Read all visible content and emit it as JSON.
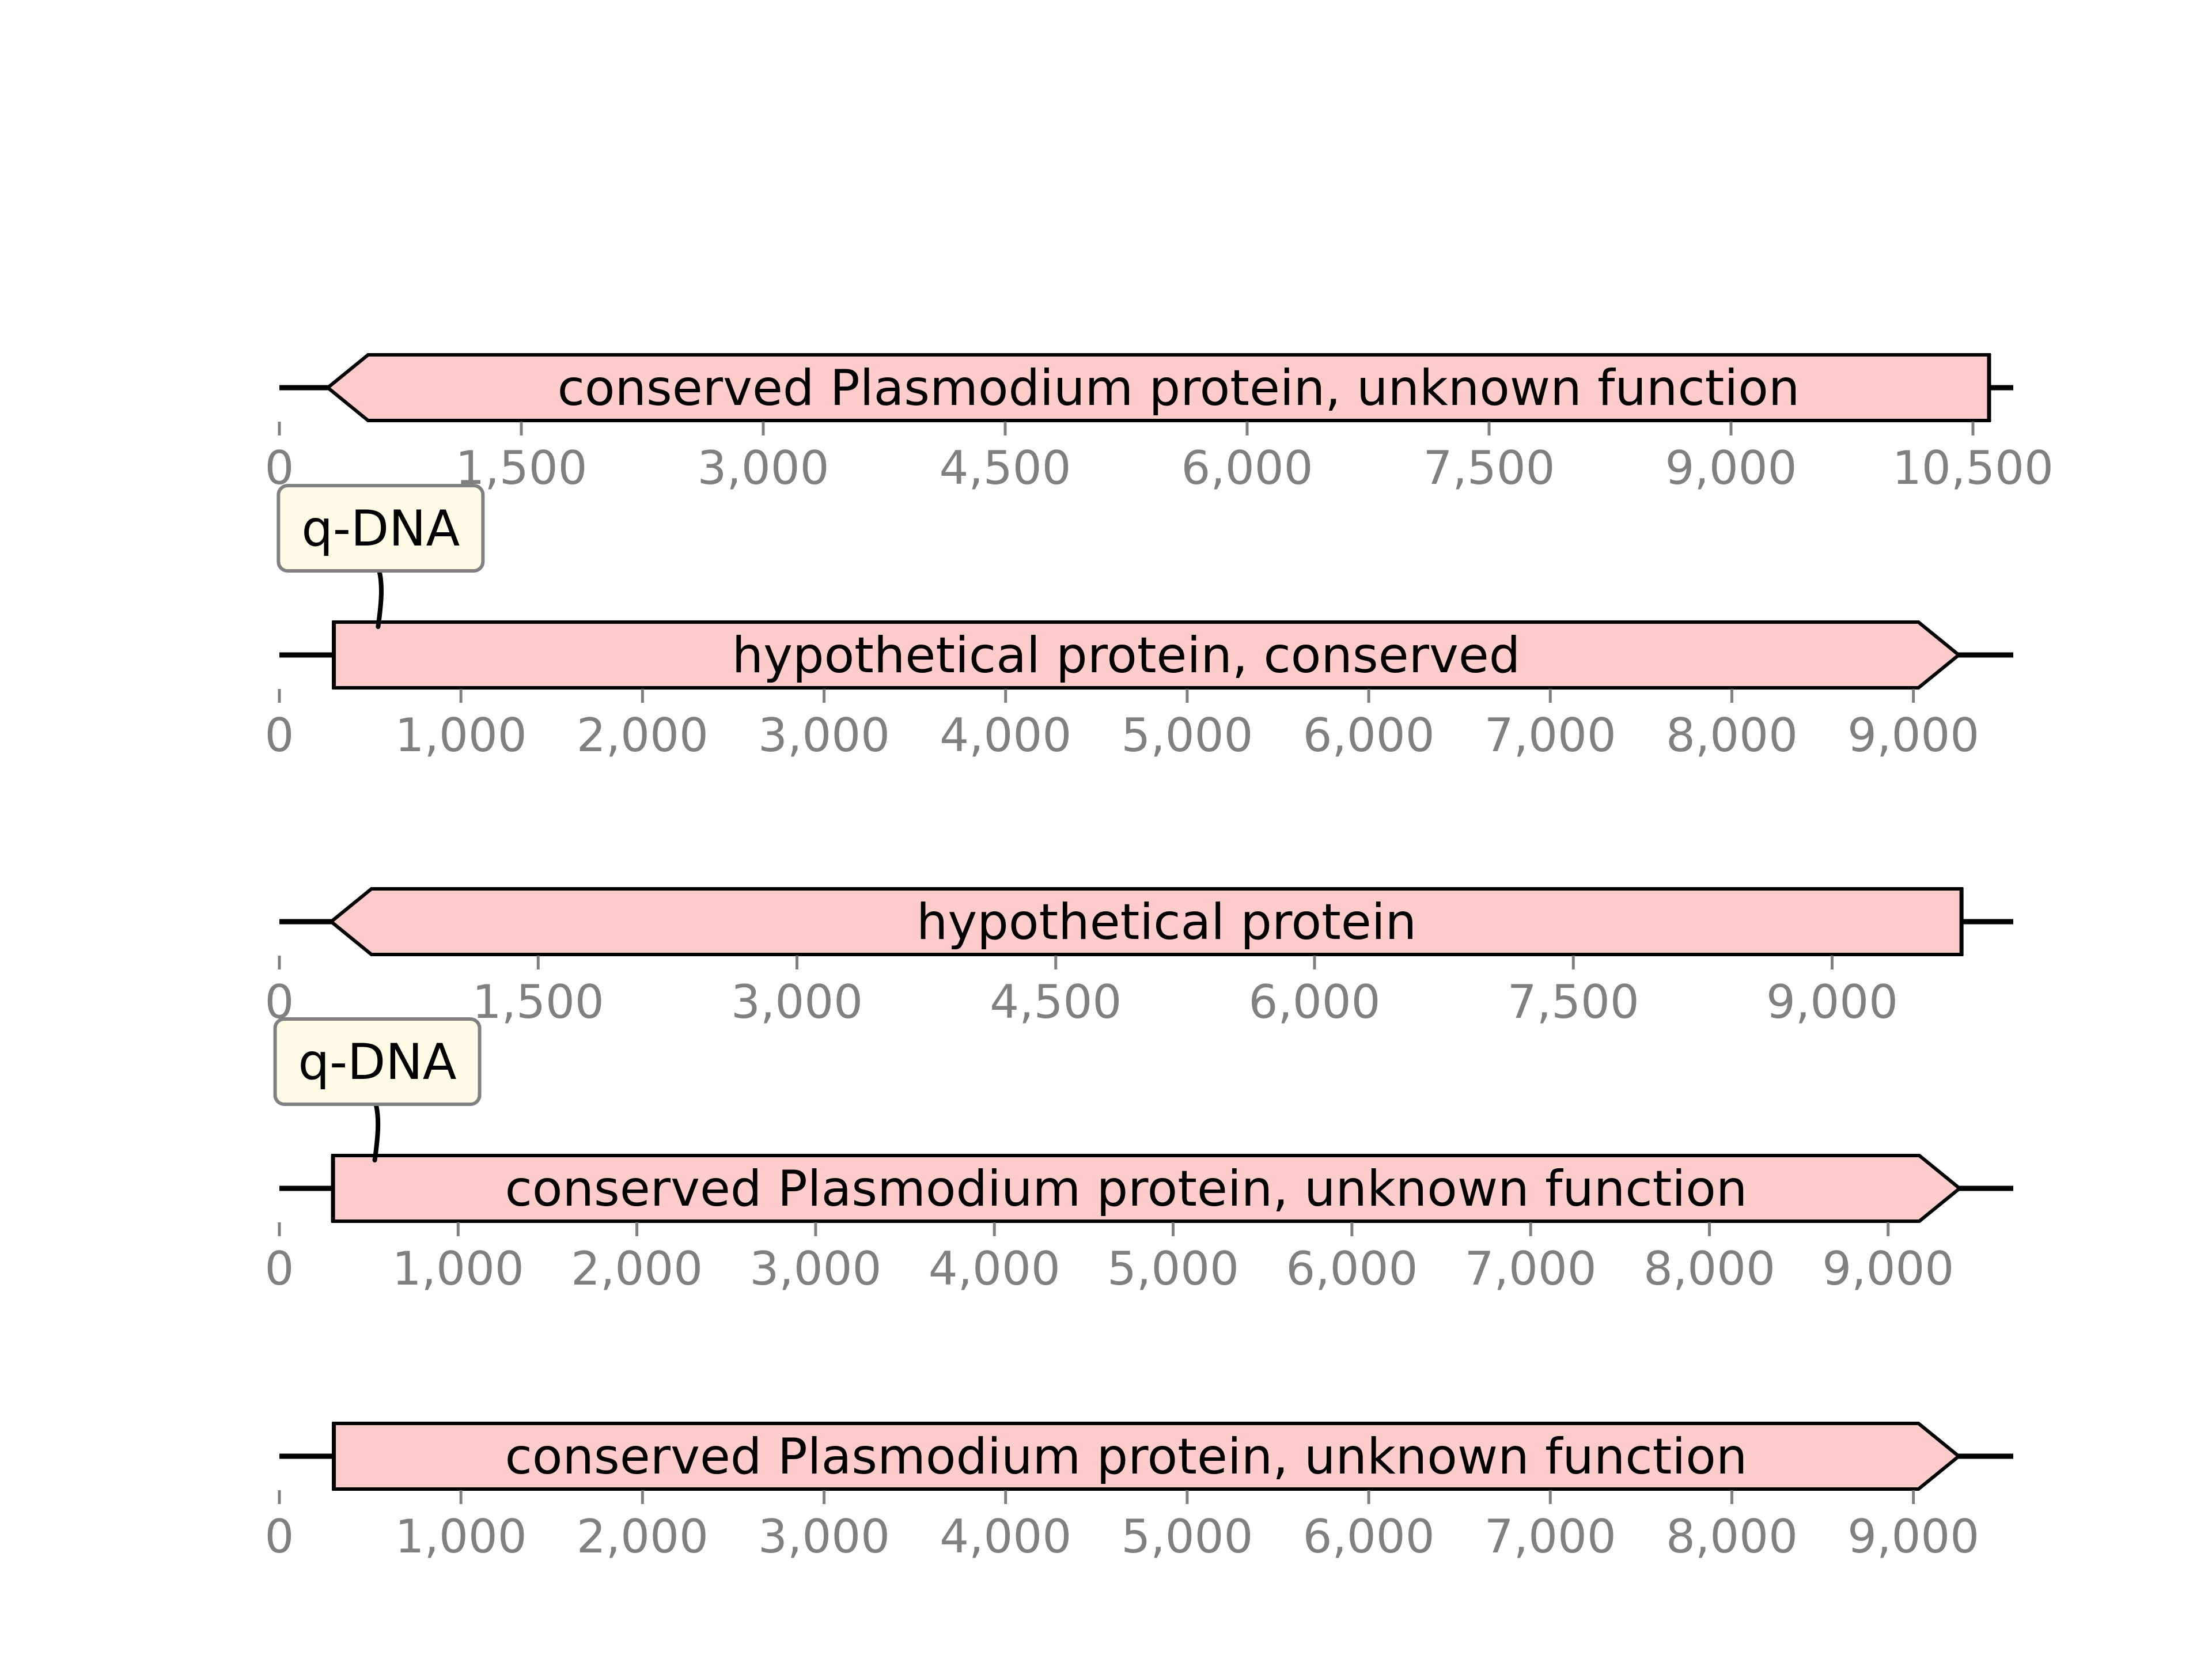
{
  "colors": {
    "feature_fill": "#ffcccc",
    "feature_stroke": "#000000",
    "axis_text": "#808080",
    "callout_fill": "#fffbe6",
    "callout_stroke": "#808080"
  },
  "tracks": [
    {
      "ticks": [
        0,
        1500,
        3000,
        4500,
        6000,
        7500,
        9000,
        10500
      ],
      "tick_labels": [
        "0",
        "1,500",
        "3,000",
        "4,500",
        "6,000",
        "7,500",
        "9,000",
        "10,500"
      ],
      "span_end": 10750,
      "feature": {
        "start": 300,
        "end": 10600,
        "strand": "reverse",
        "label": "conserved Plasmodium protein, unknown function"
      },
      "callouts": []
    },
    {
      "ticks": [
        0,
        1000,
        2000,
        3000,
        4000,
        5000,
        6000,
        7000,
        8000,
        9000
      ],
      "tick_labels": [
        "0",
        "1,000",
        "2,000",
        "3,000",
        "4,000",
        "5,000",
        "6,000",
        "7,000",
        "8,000",
        "9,000"
      ],
      "span_end": 9550,
      "feature": {
        "start": 300,
        "end": 9250,
        "strand": "forward",
        "label": "hypothetical protein, conserved"
      },
      "callouts": [
        {
          "position": 550,
          "label": "q-DNA"
        }
      ]
    },
    {
      "ticks": [
        0,
        1500,
        3000,
        4500,
        6000,
        7500,
        9000
      ],
      "tick_labels": [
        "0",
        "1,500",
        "3,000",
        "4,500",
        "6,000",
        "7,500",
        "9,000"
      ],
      "span_end": 10050,
      "feature": {
        "start": 300,
        "end": 9750,
        "strand": "reverse",
        "label": "hypothetical protein"
      },
      "callouts": []
    },
    {
      "ticks": [
        0,
        1000,
        2000,
        3000,
        4000,
        5000,
        6000,
        7000,
        8000,
        9000
      ],
      "tick_labels": [
        "0",
        "1,000",
        "2,000",
        "3,000",
        "4,000",
        "5,000",
        "6,000",
        "7,000",
        "8,000",
        "9,000"
      ],
      "span_end": 9700,
      "feature": {
        "start": 300,
        "end": 9400,
        "strand": "forward",
        "label": "conserved Plasmodium protein, unknown function"
      },
      "callouts": [
        {
          "position": 540,
          "label": "q-DNA"
        }
      ]
    },
    {
      "ticks": [
        0,
        1000,
        2000,
        3000,
        4000,
        5000,
        6000,
        7000,
        8000,
        9000
      ],
      "tick_labels": [
        "0",
        "1,000",
        "2,000",
        "3,000",
        "4,000",
        "5,000",
        "6,000",
        "7,000",
        "8,000",
        "9,000"
      ],
      "span_end": 9550,
      "feature": {
        "start": 300,
        "end": 9250,
        "strand": "forward",
        "label": "conserved Plasmodium protein, unknown function"
      },
      "callouts": []
    }
  ]
}
